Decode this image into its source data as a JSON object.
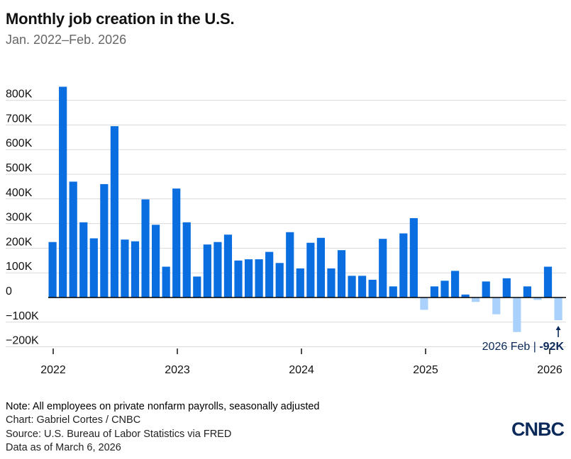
{
  "header": {
    "title": "Monthly job creation in the U.S.",
    "subtitle": "Jan. 2022–Feb. 2026"
  },
  "footer": {
    "note": "Note: All employees on private nonfarm payrolls, seasonally adjusted",
    "credit": "Chart: Gabriel Cortes / CNBC",
    "source": "Source: U.S. Bureau of Labor Statistics via FRED",
    "as_of": "Data as of March 6, 2026",
    "logo_text": "CNBC"
  },
  "colors": {
    "positive": "#0a6ee0",
    "negative": "#a9d1fb",
    "gridline": "#d9d9d9",
    "axis": "#000000",
    "annotation": "#0b2a5a"
  },
  "chart_data": {
    "type": "bar",
    "x_start": "2022-01",
    "x_tick_labels": [
      "2022",
      "2023",
      "2024",
      "2025",
      "2026"
    ],
    "y_tick_labels": [
      "800K",
      "700K",
      "600K",
      "500K",
      "400K",
      "300K",
      "200K",
      "100K",
      "0",
      "−100K",
      "−200K"
    ],
    "y_ticks": [
      800000,
      700000,
      600000,
      500000,
      400000,
      300000,
      200000,
      100000,
      0,
      -100000,
      -200000
    ],
    "ylim": [
      -200000,
      850000
    ],
    "grid": true,
    "legend": "none",
    "values": [
      225000,
      855000,
      470000,
      305000,
      240000,
      460000,
      695000,
      235000,
      228000,
      398000,
      295000,
      125000,
      442000,
      305000,
      85000,
      215000,
      225000,
      255000,
      150000,
      155000,
      155000,
      185000,
      140000,
      265000,
      118000,
      222000,
      242000,
      118000,
      192000,
      88000,
      88000,
      72000,
      238000,
      45000,
      260000,
      322000,
      -50000,
      45000,
      68000,
      108000,
      12000,
      -18000,
      65000,
      -68000,
      78000,
      -140000,
      45000,
      -10000,
      125000,
      -92000
    ],
    "annotation": {
      "label": "2026 Feb | ",
      "value": "-92K"
    }
  }
}
